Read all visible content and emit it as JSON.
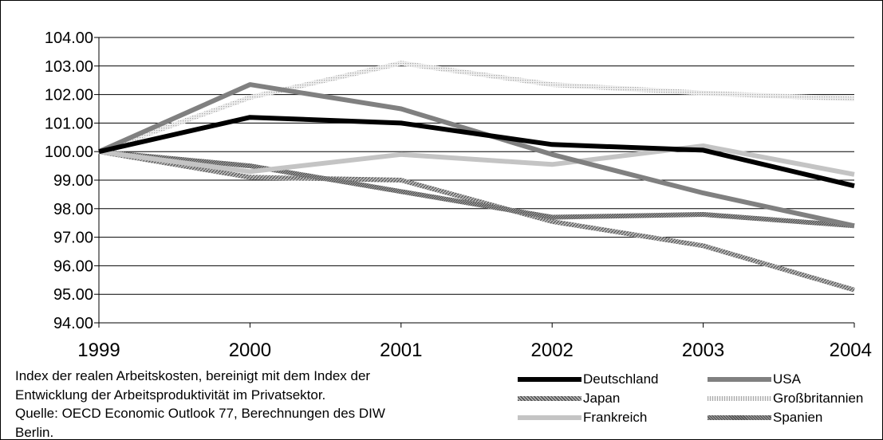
{
  "chart_data": {
    "type": "line",
    "x": [
      "1999",
      "2000",
      "2001",
      "2002",
      "2003",
      "2004"
    ],
    "ylim": [
      94.0,
      104.0
    ],
    "yticks": [
      "94.00",
      "95.00",
      "96.00",
      "97.00",
      "98.00",
      "99.00",
      "100.00",
      "101.00",
      "102.00",
      "103.00",
      "104.00"
    ],
    "grid": true,
    "legend_position": "bottom-right",
    "series": [
      {
        "name": "Deutschland",
        "color": "#000000",
        "style": "solid",
        "values": [
          100.0,
          101.2,
          101.0,
          100.25,
          100.05,
          98.8
        ]
      },
      {
        "name": "USA",
        "color": "#808080",
        "style": "solid",
        "values": [
          100.0,
          102.35,
          101.5,
          99.9,
          98.55,
          97.4
        ]
      },
      {
        "name": "Japan",
        "color": "#8c8c8c",
        "style": "hatched-dark",
        "values": [
          100.0,
          99.1,
          99.0,
          97.55,
          96.7,
          95.15
        ]
      },
      {
        "name": "Großbritannien",
        "color": "#d0d0d0",
        "style": "dotted-light",
        "values": [
          100.0,
          101.9,
          103.1,
          102.35,
          102.05,
          101.85
        ]
      },
      {
        "name": "Frankreich",
        "color": "#c4c4c4",
        "style": "solid",
        "values": [
          100.0,
          99.3,
          99.9,
          99.55,
          100.2,
          99.2
        ]
      },
      {
        "name": "Spanien",
        "color": "#7a7a7a",
        "style": "hatched-medium",
        "values": [
          100.0,
          99.5,
          98.6,
          97.7,
          97.8,
          97.4
        ]
      }
    ]
  },
  "note": {
    "line1": "Index der realen Arbeitskosten, bereinigt mit dem Index der",
    "line2": "Entwicklung der Arbeitsproduktivität im Privatsektor.",
    "line3": "Quelle: OECD Economic Outlook 77, Berechnungen des DIW",
    "line4": "Berlin."
  }
}
